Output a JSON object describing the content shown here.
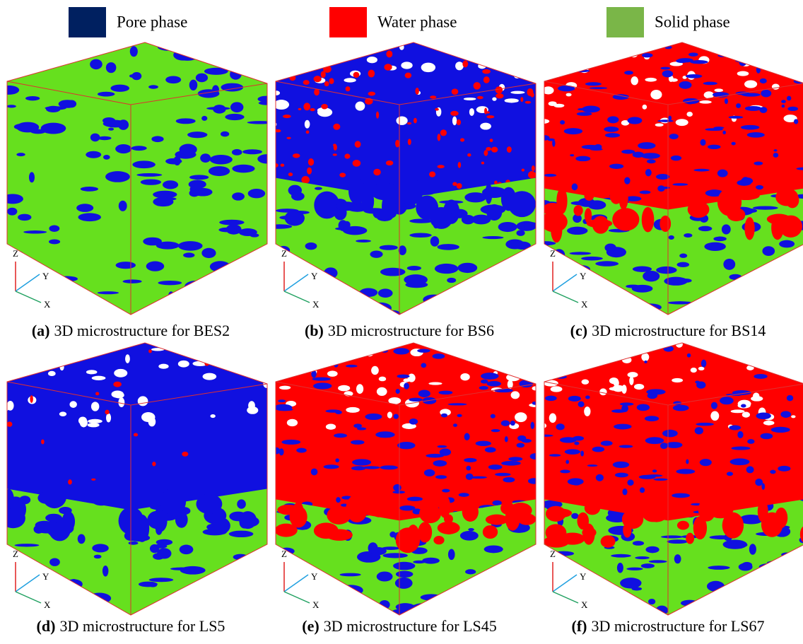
{
  "legend": [
    {
      "label": "Pore phase",
      "color": "#002060"
    },
    {
      "label": "Water phase",
      "color": "#ff0000"
    },
    {
      "label": "Solid phase",
      "color": "#7ab648"
    }
  ],
  "axis_labels": {
    "z": "Z",
    "y": "Y",
    "x": "X"
  },
  "panels": [
    {
      "tag": "(a)",
      "caption": "3D microstructure for BES2"
    },
    {
      "tag": "(b)",
      "caption": "3D microstructure for BS6"
    },
    {
      "tag": "(c)",
      "caption": "3D microstructure for BS14"
    },
    {
      "tag": "(d)",
      "caption": "3D microstructure for LS5"
    },
    {
      "tag": "(e)",
      "caption": "3D microstructure for LS45"
    },
    {
      "tag": "(f)",
      "caption": "3D microstructure for LS67"
    }
  ]
}
